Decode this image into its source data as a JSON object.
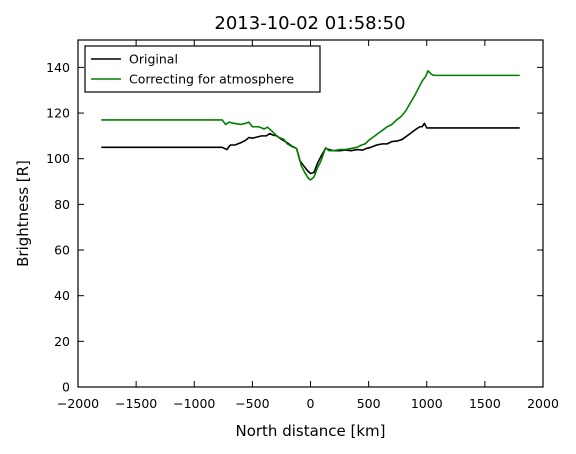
{
  "chart_data": {
    "type": "line",
    "title": "2013-10-02 01:58:50",
    "xlabel": "North distance [km]",
    "ylabel": "Brightness [R]",
    "xlim": [
      -2000,
      2000
    ],
    "ylim": [
      0,
      152
    ],
    "xticks": [
      -2000,
      -1500,
      -1000,
      -500,
      0,
      500,
      1000,
      1500,
      2000
    ],
    "yticks": [
      0,
      20,
      40,
      60,
      80,
      100,
      120,
      140
    ],
    "grid": false,
    "legend_position": "top-left",
    "series": [
      {
        "name": "Original",
        "color": "#000000",
        "points": [
          [
            -1800,
            105
          ],
          [
            -760,
            105
          ],
          [
            -720,
            104
          ],
          [
            -690,
            106
          ],
          [
            -650,
            106
          ],
          [
            -600,
            107
          ],
          [
            -560,
            108
          ],
          [
            -530,
            109.3
          ],
          [
            -500,
            109
          ],
          [
            -460,
            109.5
          ],
          [
            -420,
            110
          ],
          [
            -380,
            110
          ],
          [
            -350,
            111
          ],
          [
            -320,
            110.3
          ],
          [
            -290,
            110
          ],
          [
            -250,
            108.5
          ],
          [
            -200,
            107
          ],
          [
            -160,
            105.5
          ],
          [
            -120,
            104.5
          ],
          [
            -90,
            99
          ],
          [
            -60,
            97
          ],
          [
            -30,
            95
          ],
          [
            0,
            93.5
          ],
          [
            30,
            94
          ],
          [
            60,
            98
          ],
          [
            90,
            101
          ],
          [
            130,
            104.5
          ],
          [
            160,
            104
          ],
          [
            200,
            103.5
          ],
          [
            250,
            103.5
          ],
          [
            300,
            103.8
          ],
          [
            350,
            103.5
          ],
          [
            400,
            104
          ],
          [
            450,
            103.8
          ],
          [
            480,
            104.5
          ],
          [
            520,
            105
          ],
          [
            570,
            106
          ],
          [
            620,
            106.5
          ],
          [
            660,
            106.5
          ],
          [
            700,
            107.5
          ],
          [
            750,
            107.8
          ],
          [
            790,
            108.5
          ],
          [
            830,
            110
          ],
          [
            870,
            111.5
          ],
          [
            910,
            113
          ],
          [
            940,
            114
          ],
          [
            960,
            114
          ],
          [
            980,
            115.5
          ],
          [
            1000,
            113.5
          ],
          [
            1800,
            113.5
          ]
        ]
      },
      {
        "name": "Correcting for atmosphere",
        "color": "#008000",
        "points": [
          [
            -1800,
            117
          ],
          [
            -760,
            117
          ],
          [
            -730,
            115
          ],
          [
            -700,
            116
          ],
          [
            -660,
            115.5
          ],
          [
            -600,
            115
          ],
          [
            -560,
            115.5
          ],
          [
            -530,
            116
          ],
          [
            -500,
            114
          ],
          [
            -450,
            114
          ],
          [
            -420,
            113.5
          ],
          [
            -400,
            113
          ],
          [
            -370,
            113.8
          ],
          [
            -330,
            112
          ],
          [
            -280,
            109.5
          ],
          [
            -230,
            108.5
          ],
          [
            -200,
            106.5
          ],
          [
            -160,
            105.3
          ],
          [
            -120,
            104.5
          ],
          [
            -100,
            101
          ],
          [
            -80,
            97
          ],
          [
            -50,
            94
          ],
          [
            -20,
            91.5
          ],
          [
            0,
            90.7
          ],
          [
            30,
            92
          ],
          [
            60,
            96
          ],
          [
            90,
            99
          ],
          [
            130,
            104.8
          ],
          [
            160,
            103.5
          ],
          [
            200,
            103.5
          ],
          [
            250,
            104
          ],
          [
            300,
            104
          ],
          [
            350,
            104.5
          ],
          [
            400,
            105
          ],
          [
            440,
            106
          ],
          [
            470,
            106.5
          ],
          [
            500,
            108
          ],
          [
            540,
            109.5
          ],
          [
            580,
            111
          ],
          [
            620,
            112.5
          ],
          [
            660,
            114
          ],
          [
            700,
            115
          ],
          [
            740,
            117
          ],
          [
            780,
            118.5
          ],
          [
            820,
            121
          ],
          [
            860,
            124.5
          ],
          [
            900,
            128
          ],
          [
            930,
            131
          ],
          [
            960,
            134
          ],
          [
            990,
            136
          ],
          [
            1010,
            138.5
          ],
          [
            1040,
            137
          ],
          [
            1060,
            136.5
          ],
          [
            1800,
            136.5
          ]
        ]
      }
    ]
  }
}
